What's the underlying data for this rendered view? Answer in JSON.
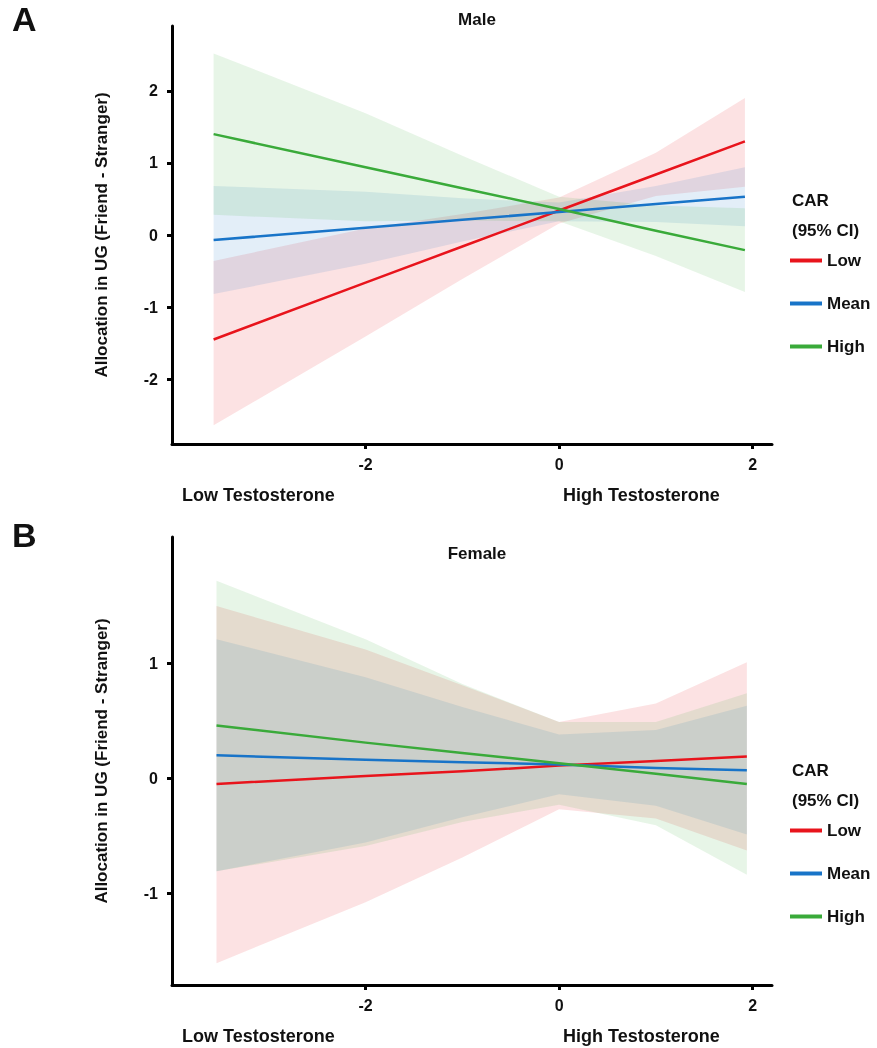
{
  "chart_data": [
    {
      "type": "line",
      "title": "Male",
      "ylabel": "Allocation in UG (Friend - Stranger)",
      "legend_title": "CAR (95% CI)",
      "legend": "right",
      "grid": false,
      "marker": "none",
      "annotations": [
        "A",
        "Low Testosterone",
        "High Testosterone"
      ],
      "xlim": [
        -4,
        2.2
      ],
      "xticks": [
        -2,
        0,
        2
      ],
      "ylim": [
        -2.9,
        2.9
      ],
      "yticks": [
        -2,
        -1,
        0,
        1,
        2
      ],
      "series": [
        {
          "name": "Low",
          "color": "#e8141c",
          "x": [
            -3.57,
            -2,
            -1,
            0,
            1,
            1.92
          ],
          "values": [
            -1.45,
            -0.66,
            -0.16,
            0.34,
            0.84,
            1.3
          ],
          "lower": [
            -2.64,
            -1.41,
            -0.61,
            0.16,
            0.54,
            0.67
          ],
          "upper": [
            -0.36,
            0.09,
            0.29,
            0.52,
            1.14,
            1.9
          ]
        },
        {
          "name": "Mean",
          "color": "#1874c8",
          "x": [
            -3.57,
            -2,
            -1,
            0,
            1,
            1.92
          ],
          "values": [
            -0.07,
            0.1,
            0.21,
            0.32,
            0.43,
            0.53
          ],
          "lower": [
            -0.82,
            -0.4,
            -0.09,
            0.19,
            0.18,
            0.12
          ],
          "upper": [
            0.68,
            0.6,
            0.51,
            0.45,
            0.68,
            0.94
          ]
        },
        {
          "name": "High",
          "color": "#3aaa3a",
          "x": [
            -3.57,
            -2,
            -1,
            0,
            1,
            1.92
          ],
          "values": [
            1.4,
            0.94,
            0.65,
            0.36,
            0.06,
            -0.21
          ],
          "lower": [
            0.28,
            0.19,
            0.2,
            0.19,
            -0.29,
            -0.79
          ],
          "upper": [
            2.52,
            1.69,
            1.1,
            0.53,
            0.41,
            0.37
          ]
        }
      ]
    },
    {
      "type": "line",
      "title": "Female",
      "ylabel": "Allocation in UG (Friend - Stranger)",
      "legend_title": "CAR (95% CI)",
      "legend": "right",
      "grid": false,
      "marker": "none",
      "annotations": [
        "B",
        "Low Testosterone",
        "High Testosterone"
      ],
      "xlim": [
        -4,
        2.2
      ],
      "xticks": [
        -2,
        0,
        2
      ],
      "ylim": [
        -1.8,
        2.1
      ],
      "yticks": [
        -1,
        0,
        1
      ],
      "series": [
        {
          "name": "Low",
          "color": "#e8141c",
          "x": [
            -3.54,
            -2,
            -1,
            0,
            1,
            1.94
          ],
          "values": [
            -0.05,
            0.02,
            0.06,
            0.11,
            0.15,
            0.19
          ],
          "lower": [
            -1.61,
            -1.08,
            -0.69,
            -0.27,
            -0.35,
            -0.63
          ],
          "upper": [
            1.5,
            1.12,
            0.81,
            0.49,
            0.65,
            1.01
          ]
        },
        {
          "name": "Mean",
          "color": "#1874c8",
          "x": [
            -3.54,
            -2,
            -1,
            0,
            1,
            1.94
          ],
          "values": [
            0.2,
            0.16,
            0.14,
            0.12,
            0.09,
            0.07
          ],
          "lower": [
            -0.81,
            -0.56,
            -0.34,
            -0.14,
            -0.24,
            -0.49
          ],
          "upper": [
            1.21,
            0.88,
            0.62,
            0.38,
            0.42,
            0.63
          ]
        },
        {
          "name": "High",
          "color": "#3aaa3a",
          "x": [
            -3.54,
            -2,
            -1,
            0,
            1,
            1.94
          ],
          "values": [
            0.46,
            0.31,
            0.22,
            0.13,
            0.04,
            -0.05
          ],
          "lower": [
            -0.81,
            -0.59,
            -0.38,
            -0.23,
            -0.41,
            -0.84
          ],
          "upper": [
            1.72,
            1.21,
            0.82,
            0.49,
            0.49,
            0.74
          ]
        }
      ]
    }
  ]
}
